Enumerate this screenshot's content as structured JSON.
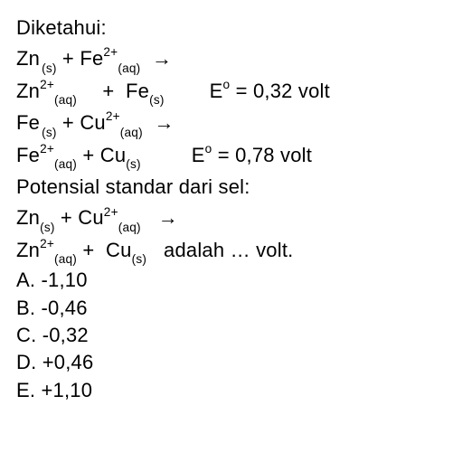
{
  "header": "Diketahui:",
  "r1": {
    "a": "Zn",
    "as": "(s)",
    "b": "Fe",
    "bs1": "2+",
    "bs2": "(aq)"
  },
  "r2": {
    "a": "Zn",
    "as1": "2+",
    "as2": "(aq)",
    "b": "Fe",
    "bs": "(s)",
    "eL": "E",
    "eS": "o",
    "eV": " = 0,32 volt"
  },
  "r3": {
    "a": "Fe",
    "as": "(s)",
    "b": "Cu",
    "bs1": "2+",
    "bs2": "(aq)"
  },
  "r4": {
    "a": "Fe",
    "as1": "2+",
    "as2": "(aq)",
    "b": "Cu",
    "bs": "(s)",
    "eL": "E",
    "eS": "o",
    "eV": " = 0,78 volt"
  },
  "mid": "Potensial standar dari sel:",
  "r5": {
    "a": "Zn",
    "as": "(s)",
    "b": "Cu",
    "bs1": "2+",
    "bs2": "(aq)"
  },
  "r6": {
    "a": "Zn",
    "as1": "2+",
    "as2": "(aq)",
    "b": "Cu",
    "bs": "(s)",
    "tail": " adalah … volt."
  },
  "choices": {
    "a": "A. -1,10",
    "b": "B. -0,46",
    "c": "C. -0,32",
    "d": "D. +0,46",
    "e": "E. +1,10"
  },
  "style": {
    "arrow": "→",
    "plus": " + "
  }
}
